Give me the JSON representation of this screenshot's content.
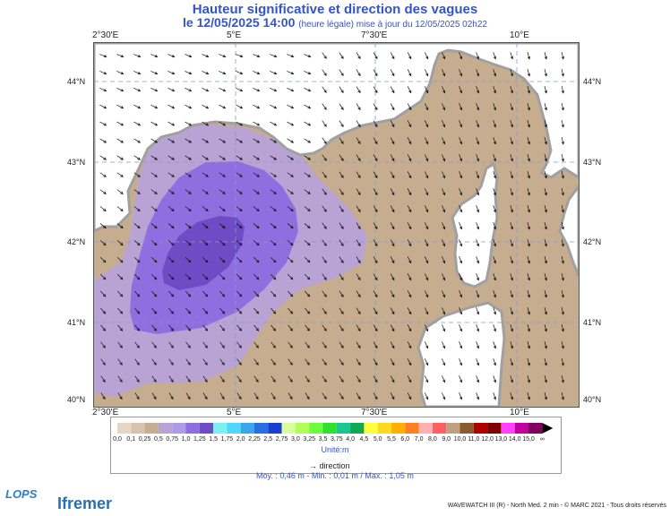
{
  "title": {
    "line1": "Hauteur significative et direction des vagues",
    "line2_date": "le 12/05/2025 14:00",
    "line2_note": "(heure légale) mise à jour du 12/05/2025 02h22"
  },
  "axes": {
    "lon_labels": [
      "2°30'E",
      "5°E",
      "7°30'E",
      "10°E"
    ],
    "lat_labels": [
      "44°N",
      "43°N",
      "42°N",
      "41°N",
      "40°N"
    ]
  },
  "legend": {
    "values": [
      "0,0",
      "0,1",
      "0,25",
      "0,5",
      "0,75",
      "1,0",
      "1,25",
      "1,5",
      "1,75",
      "2,0",
      "2,25",
      "2,5",
      "2,75",
      "3,0",
      "3,25",
      "3,5",
      "3,75",
      "4,0",
      "4,5",
      "5,0",
      "5,5",
      "6,0",
      "7,0",
      "8,0",
      "9,0",
      "10,0",
      "11,0",
      "12,0",
      "13,0",
      "14,0",
      "15,0",
      "∞"
    ],
    "colors": [
      "#e6d6c6",
      "#d9c2ad",
      "#c6ad90",
      "#b8a3d4",
      "#ad9be8",
      "#8f6fe0",
      "#6f4cc6",
      "#7cf0f0",
      "#4fd8ff",
      "#3aa6f0",
      "#2a6fe0",
      "#1a3fd0",
      "#d8ff9c",
      "#b0ff5c",
      "#6aff3a",
      "#30e030",
      "#18c890",
      "#10a850",
      "#ffff40",
      "#ffd820",
      "#ffb000",
      "#ff8020",
      "#ffb0b0",
      "#ff6060",
      "#c0a080",
      "#8a5a30",
      "#b00000",
      "#800000",
      "#ff40ff",
      "#c000a0",
      "#800060"
    ],
    "unit": "Unité:m",
    "direction_label": "direction"
  },
  "stats": "Moy. : 0,46 m   -   Min. : 0,01 m / Max. : 1,05 m",
  "credits": "WAVEWATCH III (R) - North Med. 2 min - © MARC 2021 - Tous droits réservés",
  "logos": {
    "lops": "LOPS",
    "ifremer": "Ifremer"
  },
  "colors": {
    "sea_low": "#c6ad90",
    "sea_05": "#b8a3d4",
    "sea_075": "#8f6fe0",
    "sea_1": "#6f4cc6",
    "land": "#ffffff",
    "coast": "#a0a0a0",
    "arrow": "#111111"
  }
}
